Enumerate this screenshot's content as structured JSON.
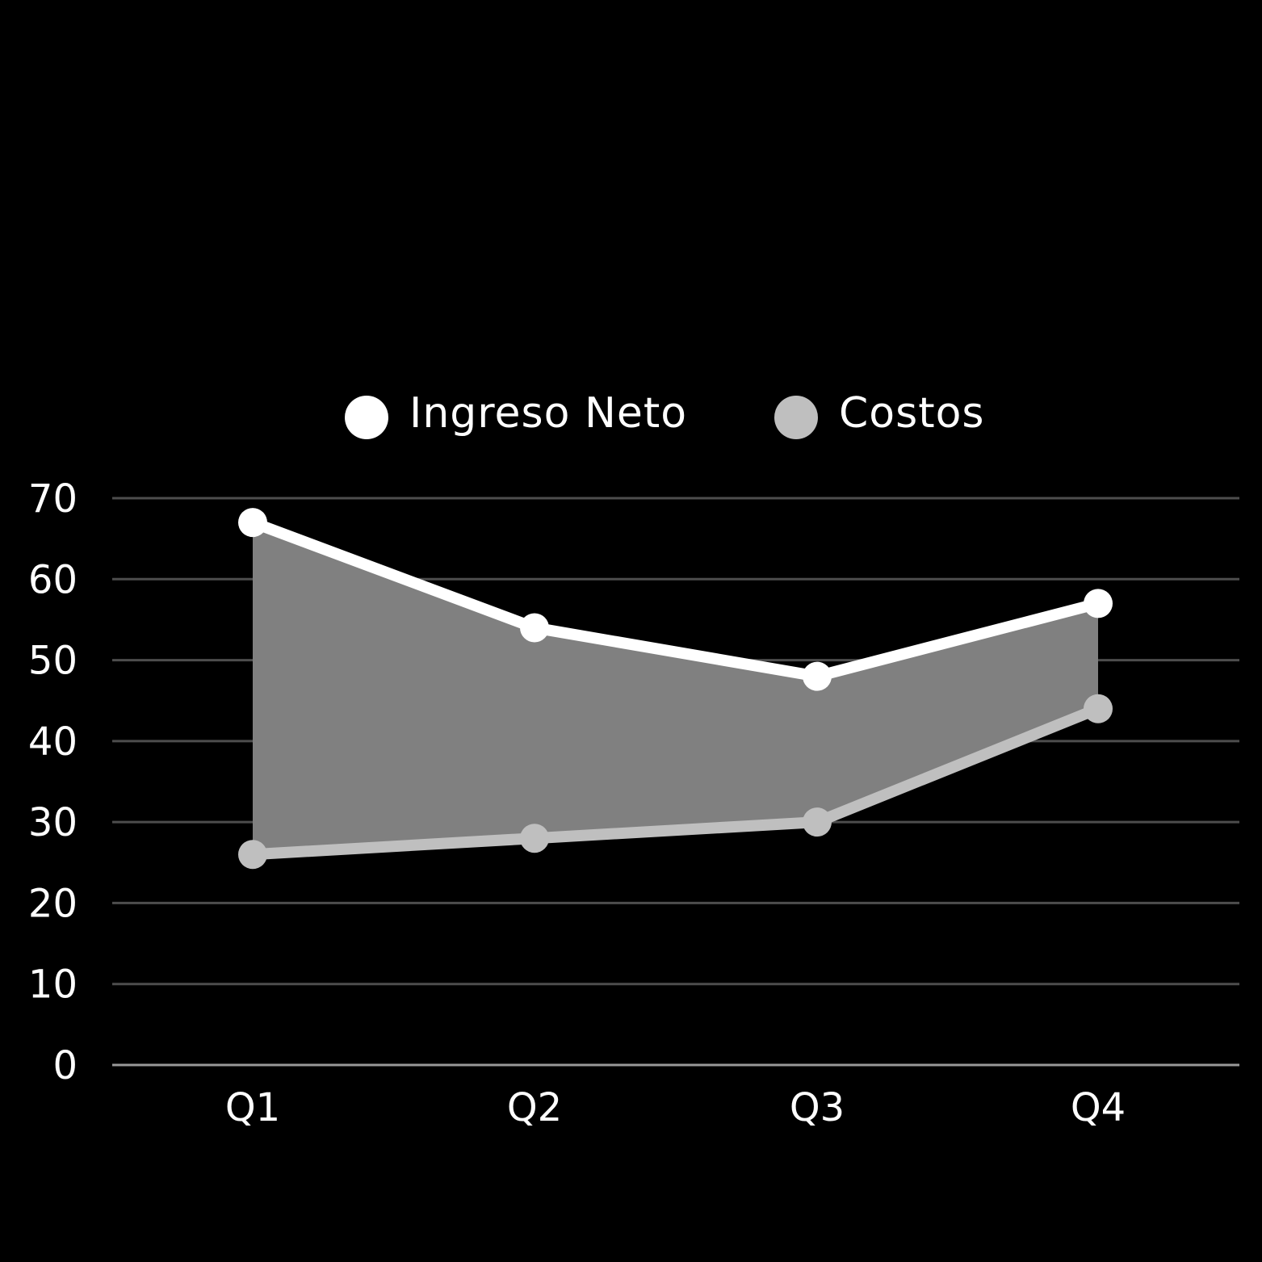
{
  "chart_data": {
    "type": "line",
    "categories": [
      "Q1",
      "Q2",
      "Q3",
      "Q4"
    ],
    "series": [
      {
        "name": "Ingreso Neto",
        "values": [
          67,
          54,
          48,
          57
        ],
        "color": "#ffffff"
      },
      {
        "name": "Costos",
        "values": [
          26,
          28,
          30,
          44
        ],
        "color": "#bfbfbf"
      }
    ],
    "fill_between": {
      "color": "#808080"
    },
    "yticks": [
      0,
      10,
      20,
      30,
      40,
      50,
      60,
      70
    ],
    "ylim": [
      0,
      70
    ],
    "grid": true,
    "legend_position": "top-center",
    "background": "#000000",
    "gridline_color": "#4d4d4d",
    "baseline_color": "#999999"
  }
}
